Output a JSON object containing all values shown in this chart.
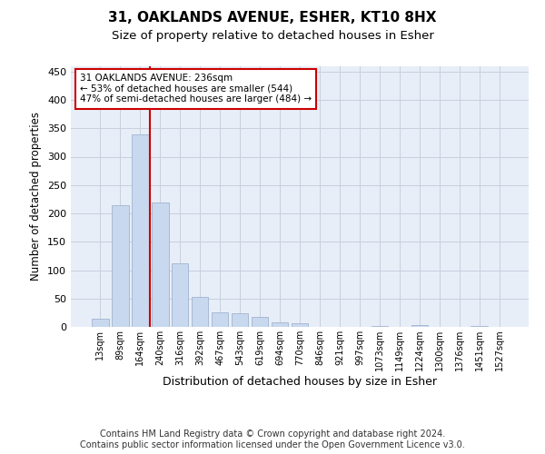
{
  "title": "31, OAKLANDS AVENUE, ESHER, KT10 8HX",
  "subtitle": "Size of property relative to detached houses in Esher",
  "xlabel": "Distribution of detached houses by size in Esher",
  "ylabel": "Number of detached properties",
  "categories": [
    "13sqm",
    "89sqm",
    "164sqm",
    "240sqm",
    "316sqm",
    "392sqm",
    "467sqm",
    "543sqm",
    "619sqm",
    "694sqm",
    "770sqm",
    "846sqm",
    "921sqm",
    "997sqm",
    "1073sqm",
    "1149sqm",
    "1224sqm",
    "1300sqm",
    "1376sqm",
    "1451sqm",
    "1527sqm"
  ],
  "values": [
    15,
    215,
    340,
    220,
    112,
    53,
    25,
    24,
    18,
    8,
    7,
    0,
    0,
    0,
    2,
    0,
    3,
    0,
    0,
    2,
    0
  ],
  "bar_color": "#c8d8ee",
  "bar_edge_color": "#a0b4d0",
  "red_line_index": 2.5,
  "annotation_line1": "31 OAKLANDS AVENUE: 236sqm",
  "annotation_line2": "← 53% of detached houses are smaller (544)",
  "annotation_line3": "47% of semi-detached houses are larger (484) →",
  "annotation_box_color": "#ffffff",
  "annotation_box_edge": "#cc0000",
  "red_line_color": "#cc0000",
  "footer_line1": "Contains HM Land Registry data © Crown copyright and database right 2024.",
  "footer_line2": "Contains public sector information licensed under the Open Government Licence v3.0.",
  "ylim": [
    0,
    460
  ],
  "ax_facecolor": "#e8eef8",
  "background_color": "#ffffff",
  "grid_color": "#c8d0de"
}
